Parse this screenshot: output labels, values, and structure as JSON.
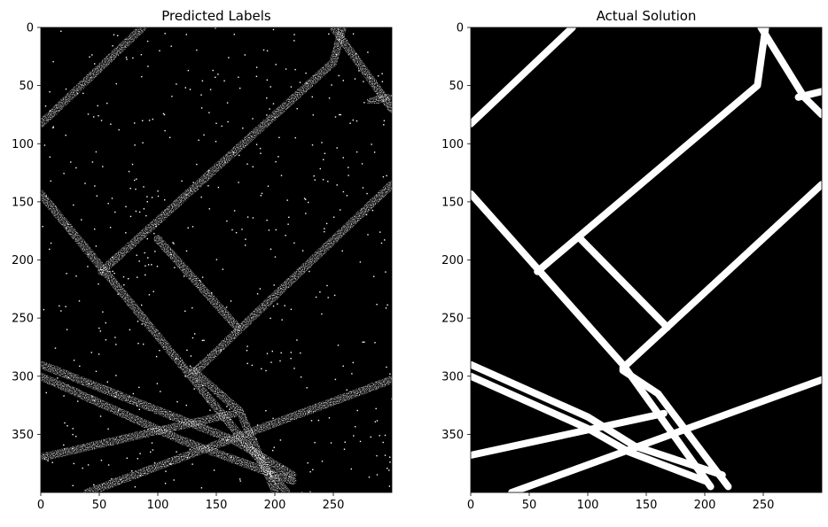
{
  "chart_data": [
    {
      "type": "heatmap",
      "title": "Predicted Labels",
      "colormap": "binary (black background, white road pixels)",
      "style": "noisy speckled prediction",
      "image_size": [
        300,
        400
      ],
      "xlim": [
        0,
        300
      ],
      "ylim": [
        400,
        0
      ],
      "xticks": [
        0,
        50,
        100,
        150,
        200,
        250
      ],
      "yticks": [
        0,
        50,
        100,
        150,
        200,
        250,
        300,
        350
      ],
      "roads": [
        [
          [
            0,
            83
          ],
          [
            87,
            0
          ]
        ],
        [
          [
            52,
            210
          ],
          [
            250,
            30
          ],
          [
            258,
            0
          ]
        ],
        [
          [
            0,
            143
          ],
          [
            210,
            400
          ]
        ],
        [
          [
            100,
            182
          ],
          [
            168,
            258
          ]
        ],
        [
          [
            133,
            295
          ],
          [
            300,
            135
          ]
        ],
        [
          [
            0,
            290
          ],
          [
            165,
            355
          ],
          [
            215,
            385
          ]
        ],
        [
          [
            0,
            300
          ],
          [
            120,
            355
          ],
          [
            215,
            390
          ]
        ],
        [
          [
            0,
            370
          ],
          [
            165,
            332
          ]
        ],
        [
          [
            40,
            400
          ],
          [
            300,
            303
          ]
        ],
        [
          [
            130,
            295
          ],
          [
            170,
            330
          ],
          [
            200,
            398
          ]
        ],
        [
          [
            250,
            0
          ],
          [
            300,
            70
          ]
        ],
        [
          [
            280,
            65
          ],
          [
            300,
            58
          ]
        ]
      ]
    },
    {
      "type": "heatmap",
      "title": "Actual Solution",
      "colormap": "binary (black background, white road pixels)",
      "style": "clean ground truth",
      "image_size": [
        300,
        400
      ],
      "xlim": [
        0,
        300
      ],
      "ylim": [
        400,
        0
      ],
      "xticks": [
        0,
        50,
        100,
        150,
        200,
        250
      ],
      "yticks": [
        0,
        50,
        100,
        150,
        200,
        250,
        300,
        350
      ],
      "roads": [
        [
          [
            0,
            83
          ],
          [
            87,
            0
          ]
        ],
        [
          [
            57,
            210
          ],
          [
            245,
            50
          ],
          [
            248,
            28
          ],
          [
            252,
            0
          ]
        ],
        [
          [
            0,
            143
          ],
          [
            130,
            290
          ],
          [
            205,
            395
          ]
        ],
        [
          [
            92,
            180
          ],
          [
            168,
            258
          ]
        ],
        [
          [
            130,
            293
          ],
          [
            300,
            135
          ]
        ],
        [
          [
            0,
            290
          ],
          [
            100,
            335
          ],
          [
            140,
            360
          ],
          [
            215,
            385
          ]
        ],
        [
          [
            0,
            300
          ],
          [
            100,
            345
          ],
          [
            135,
            365
          ],
          [
            200,
            390
          ]
        ],
        [
          [
            0,
            368
          ],
          [
            165,
            332
          ]
        ],
        [
          [
            35,
            400
          ],
          [
            300,
            303
          ]
        ],
        [
          [
            130,
            295
          ],
          [
            160,
            315
          ],
          [
            220,
            395
          ]
        ],
        [
          [
            248,
            0
          ],
          [
            285,
            60
          ],
          [
            300,
            75
          ]
        ],
        [
          [
            280,
            60
          ],
          [
            300,
            55
          ]
        ]
      ]
    }
  ]
}
